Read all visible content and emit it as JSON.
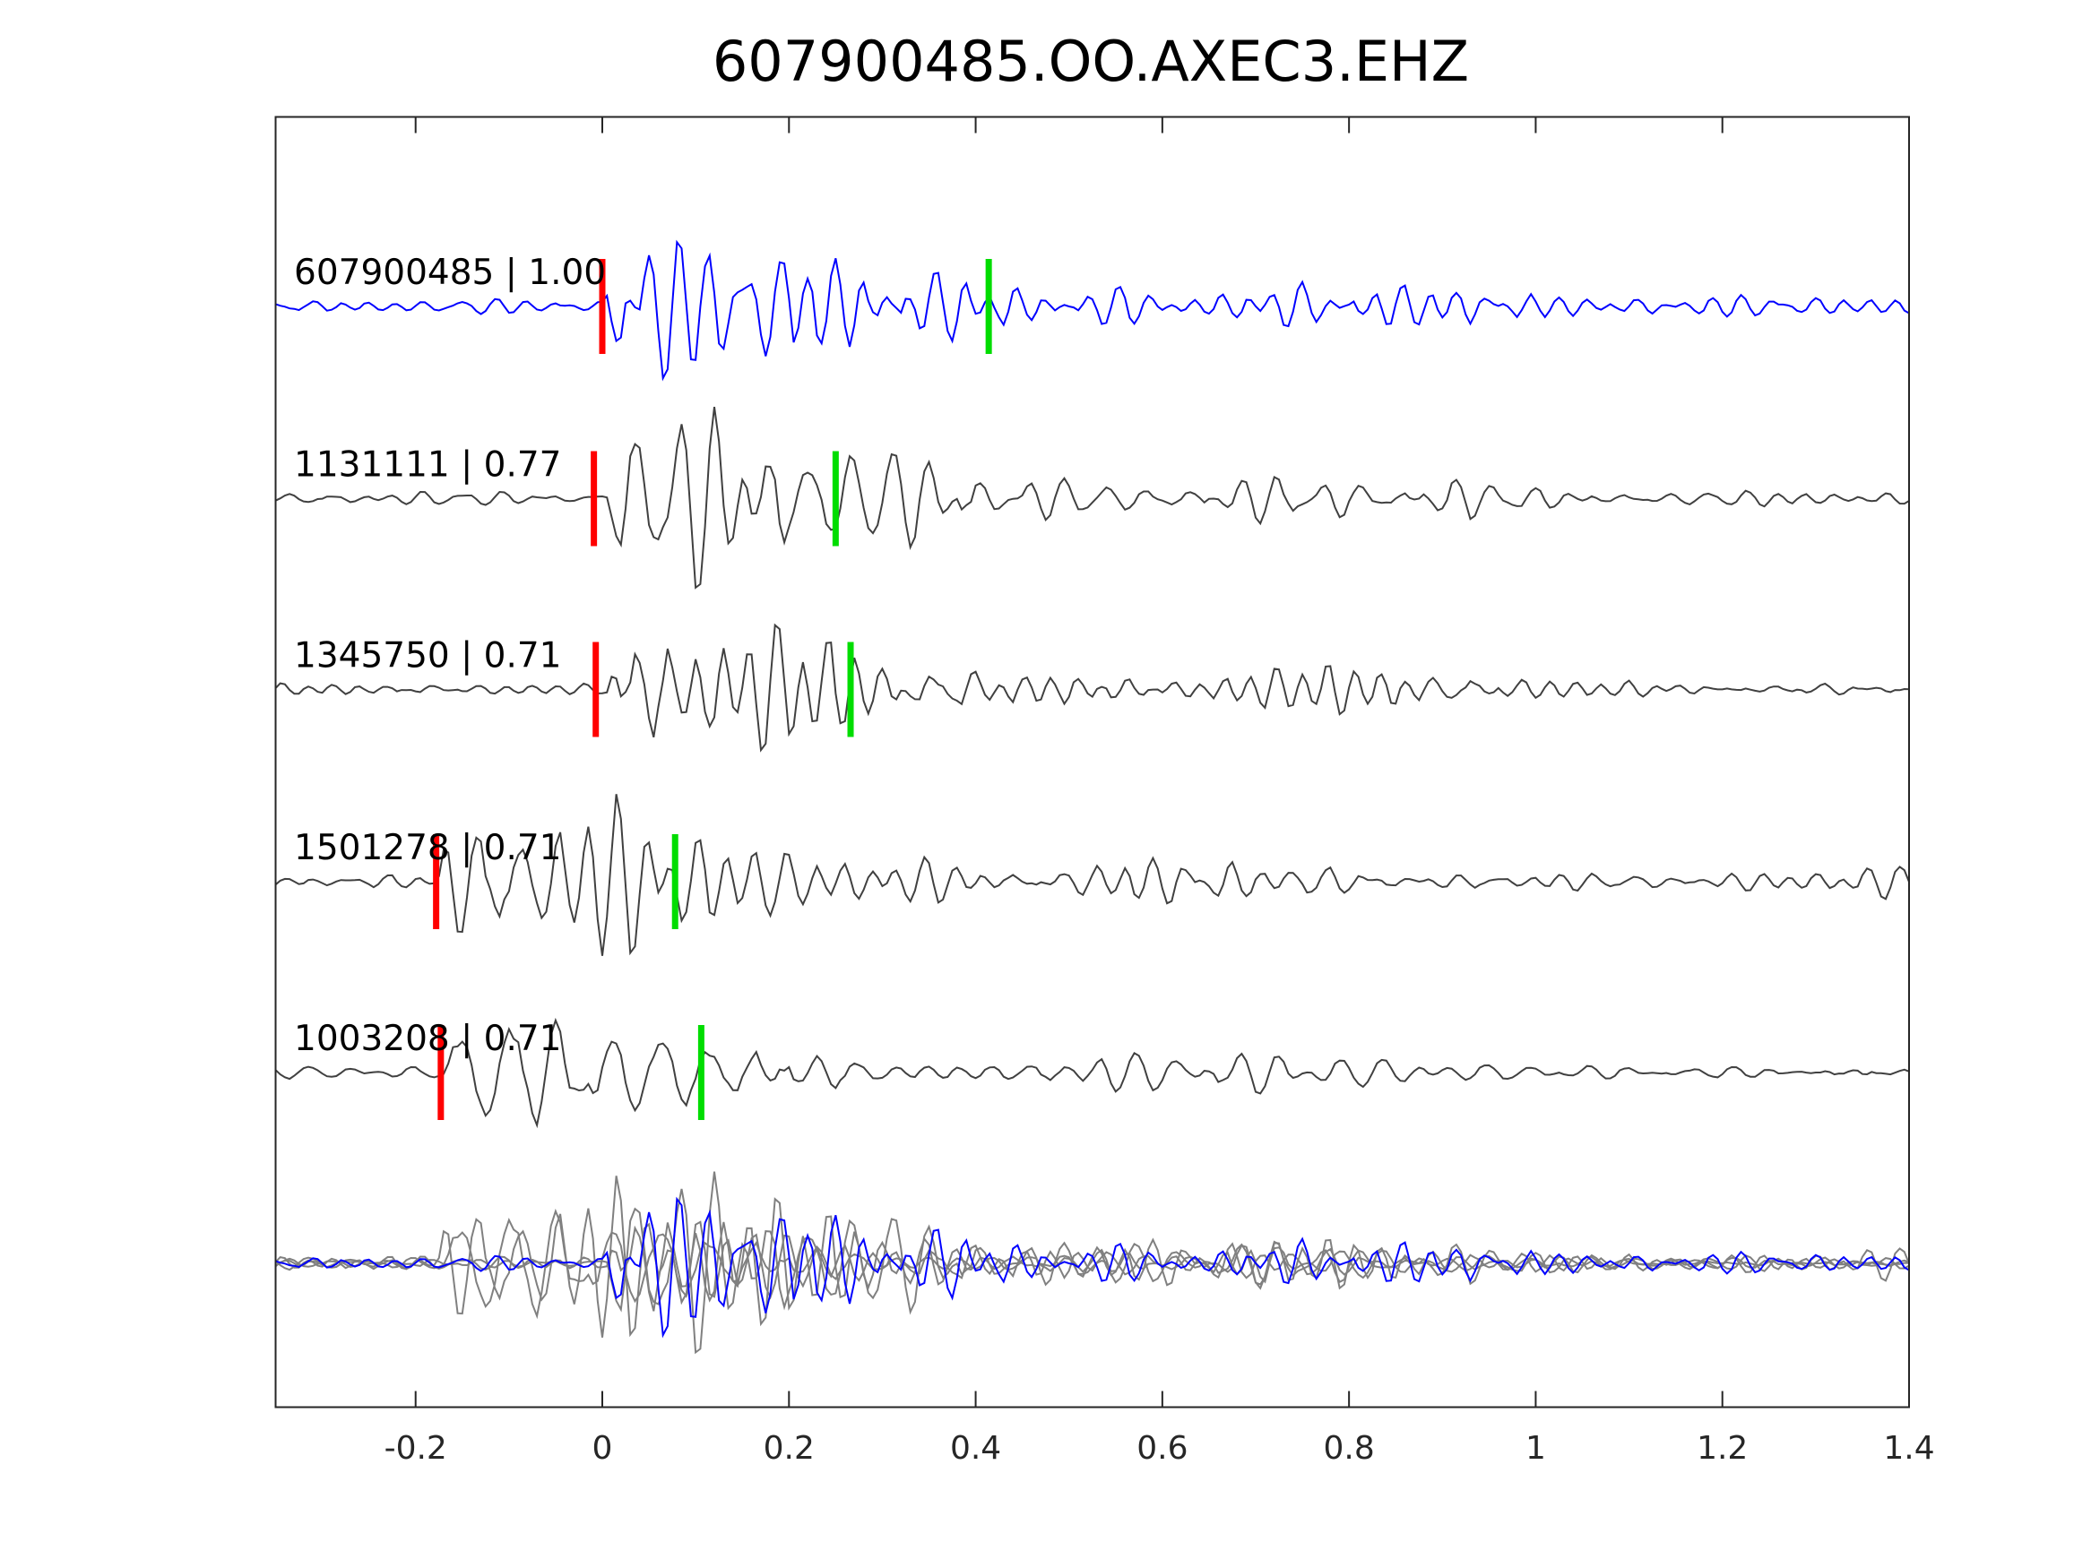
{
  "chart_data": {
    "type": "line",
    "title": "607900485.OO.AXEC3.EHZ",
    "xlabel": "",
    "ylabel": "",
    "xlim": [
      -0.35,
      1.4
    ],
    "xticks": [
      -0.2,
      0,
      0.2,
      0.4,
      0.6,
      0.8,
      1,
      1.2,
      1.4
    ],
    "xtick_labels": [
      "-0.2",
      "0",
      "0.2",
      "0.4",
      "0.6",
      "0.8",
      "1",
      "1.2",
      "1.4"
    ],
    "grid": false,
    "series": [
      {
        "name": "607900485",
        "label": "607900485 | 1.00",
        "cc": 1.0,
        "color": "#0000ff",
        "onset": 0.0,
        "p_pick": 0.0,
        "s_pick": 0.414,
        "seed": 11,
        "amp": 1.0
      },
      {
        "name": "1131111",
        "label": "1131111 | 0.77",
        "cc": 0.77,
        "color": "#404040",
        "onset": 0.0,
        "p_pick": -0.009,
        "s_pick": 0.25,
        "seed": 23,
        "amp": 1.0
      },
      {
        "name": "1345750",
        "label": "1345750 | 0.71",
        "cc": 0.71,
        "color": "#404040",
        "onset": 0.0,
        "p_pick": -0.007,
        "s_pick": 0.266,
        "seed": 37,
        "amp": 1.0
      },
      {
        "name": "1501278",
        "label": "1501278 | 0.71",
        "cc": 0.71,
        "color": "#404040",
        "onset": -0.18,
        "p_pick": -0.178,
        "s_pick": 0.078,
        "seed": 41,
        "amp": 1.0
      },
      {
        "name": "1003208",
        "label": "1003208 | 0.71",
        "cc": 0.71,
        "color": "#404040",
        "onset": -0.175,
        "p_pick": -0.173,
        "s_pick": 0.106,
        "seed": 53,
        "amp": 1.0
      }
    ],
    "overlay": {
      "description_color_others": "#808080",
      "color_master": "#0000ff"
    },
    "pick_colors": {
      "p": "#ff0000",
      "s": "#00dd00"
    }
  }
}
